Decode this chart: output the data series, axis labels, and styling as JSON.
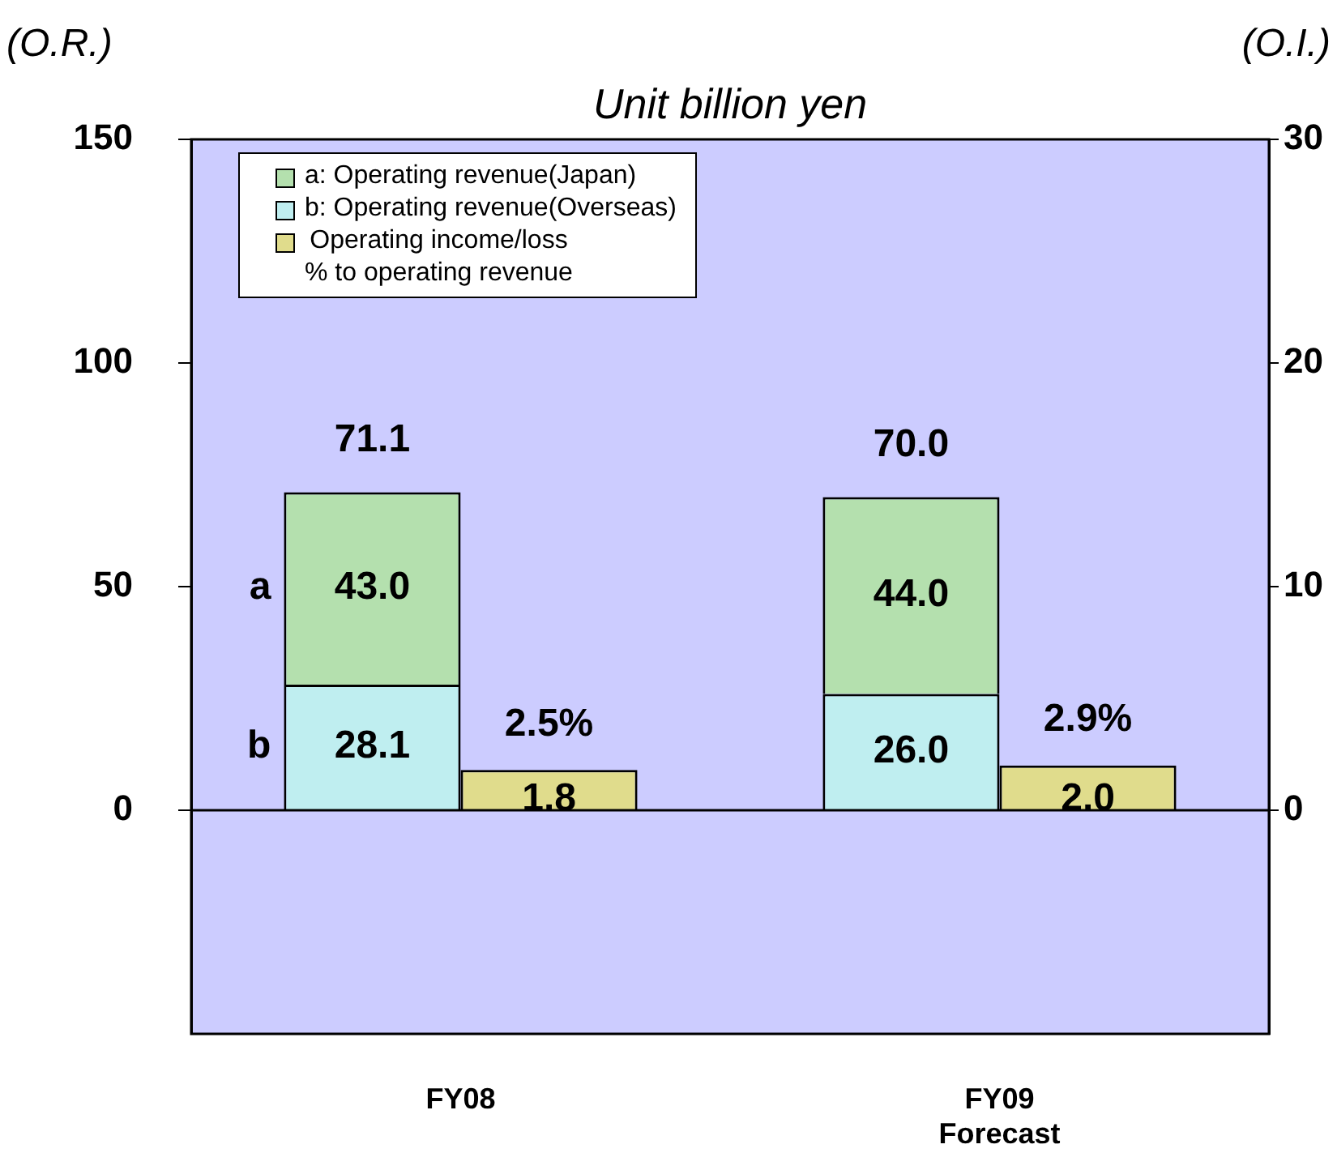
{
  "chart_data": {
    "type": "bar",
    "title": "Unit billion yen",
    "ylabel": "(O.R.)",
    "y2label": "(O.I.)",
    "categories": [
      "FY08",
      "FY09\nForecast"
    ],
    "series": [
      {
        "name": "b: Operating revenue(Overseas)",
        "color": "#bfeef0",
        "values": [
          28.1,
          26.0
        ],
        "value_labels": [
          "28.1",
          "26.0"
        ]
      },
      {
        "name": "a: Operating revenue(Japan)",
        "color": "#b4e0ae",
        "values": [
          43.0,
          44.0
        ],
        "value_labels": [
          "43.0",
          "44.0"
        ]
      },
      {
        "name": "Operating income/loss\n% to operating revenue",
        "color": "#e0dc8c",
        "values": [
          1.8,
          2.0
        ],
        "axis": "y2",
        "value_labels": [
          "1.8",
          "2.0"
        ]
      }
    ],
    "stacked": true,
    "totals": [
      "71.1",
      "70.0"
    ],
    "annotations": [
      "b",
      "a",
      "2.5%",
      "2.9%"
    ],
    "ref_lines": [
      {
        "axis": "y",
        "value": 0,
        "color": "#000000"
      }
    ],
    "ylim": [
      -50,
      150
    ],
    "yticks": [
      0,
      50,
      100,
      150
    ],
    "y2lim": [
      -10,
      30
    ],
    "y2ticks": [
      0,
      10,
      20,
      30
    ],
    "legend": "top left",
    "grid": false
  }
}
